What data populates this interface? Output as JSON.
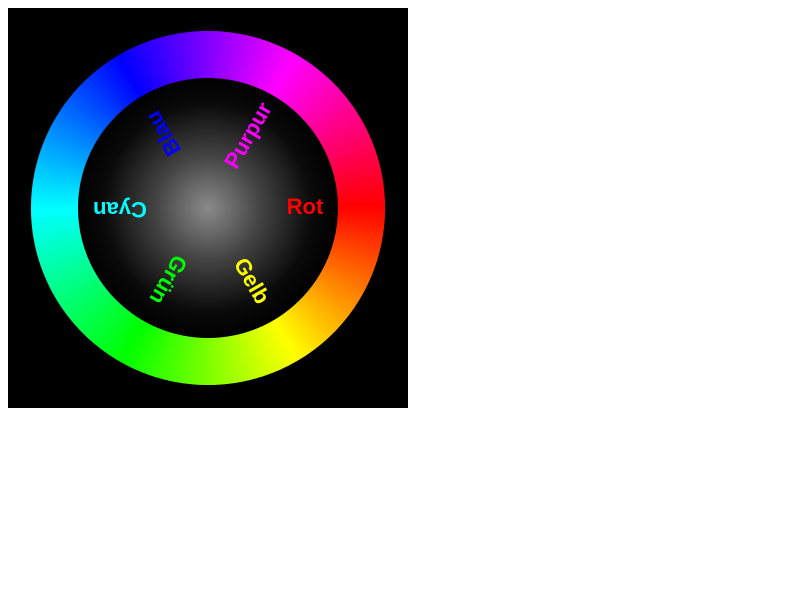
{
  "wheel": {
    "labels": [
      {
        "key": "rot",
        "text": "Rot",
        "color": "#ff0000"
      },
      {
        "key": "purpur",
        "text": "Purpur",
        "color": "#ff00ff"
      },
      {
        "key": "blau",
        "text": "Blau",
        "color": "#0000ff"
      },
      {
        "key": "cyan",
        "text": "Cyan",
        "color": "#00ffff"
      },
      {
        "key": "gruen",
        "text": "Grün",
        "color": "#00ff00"
      },
      {
        "key": "gelb",
        "text": "Gelb",
        "color": "#ffff00"
      }
    ],
    "background_color": "#000000",
    "center_color": "#808080"
  }
}
